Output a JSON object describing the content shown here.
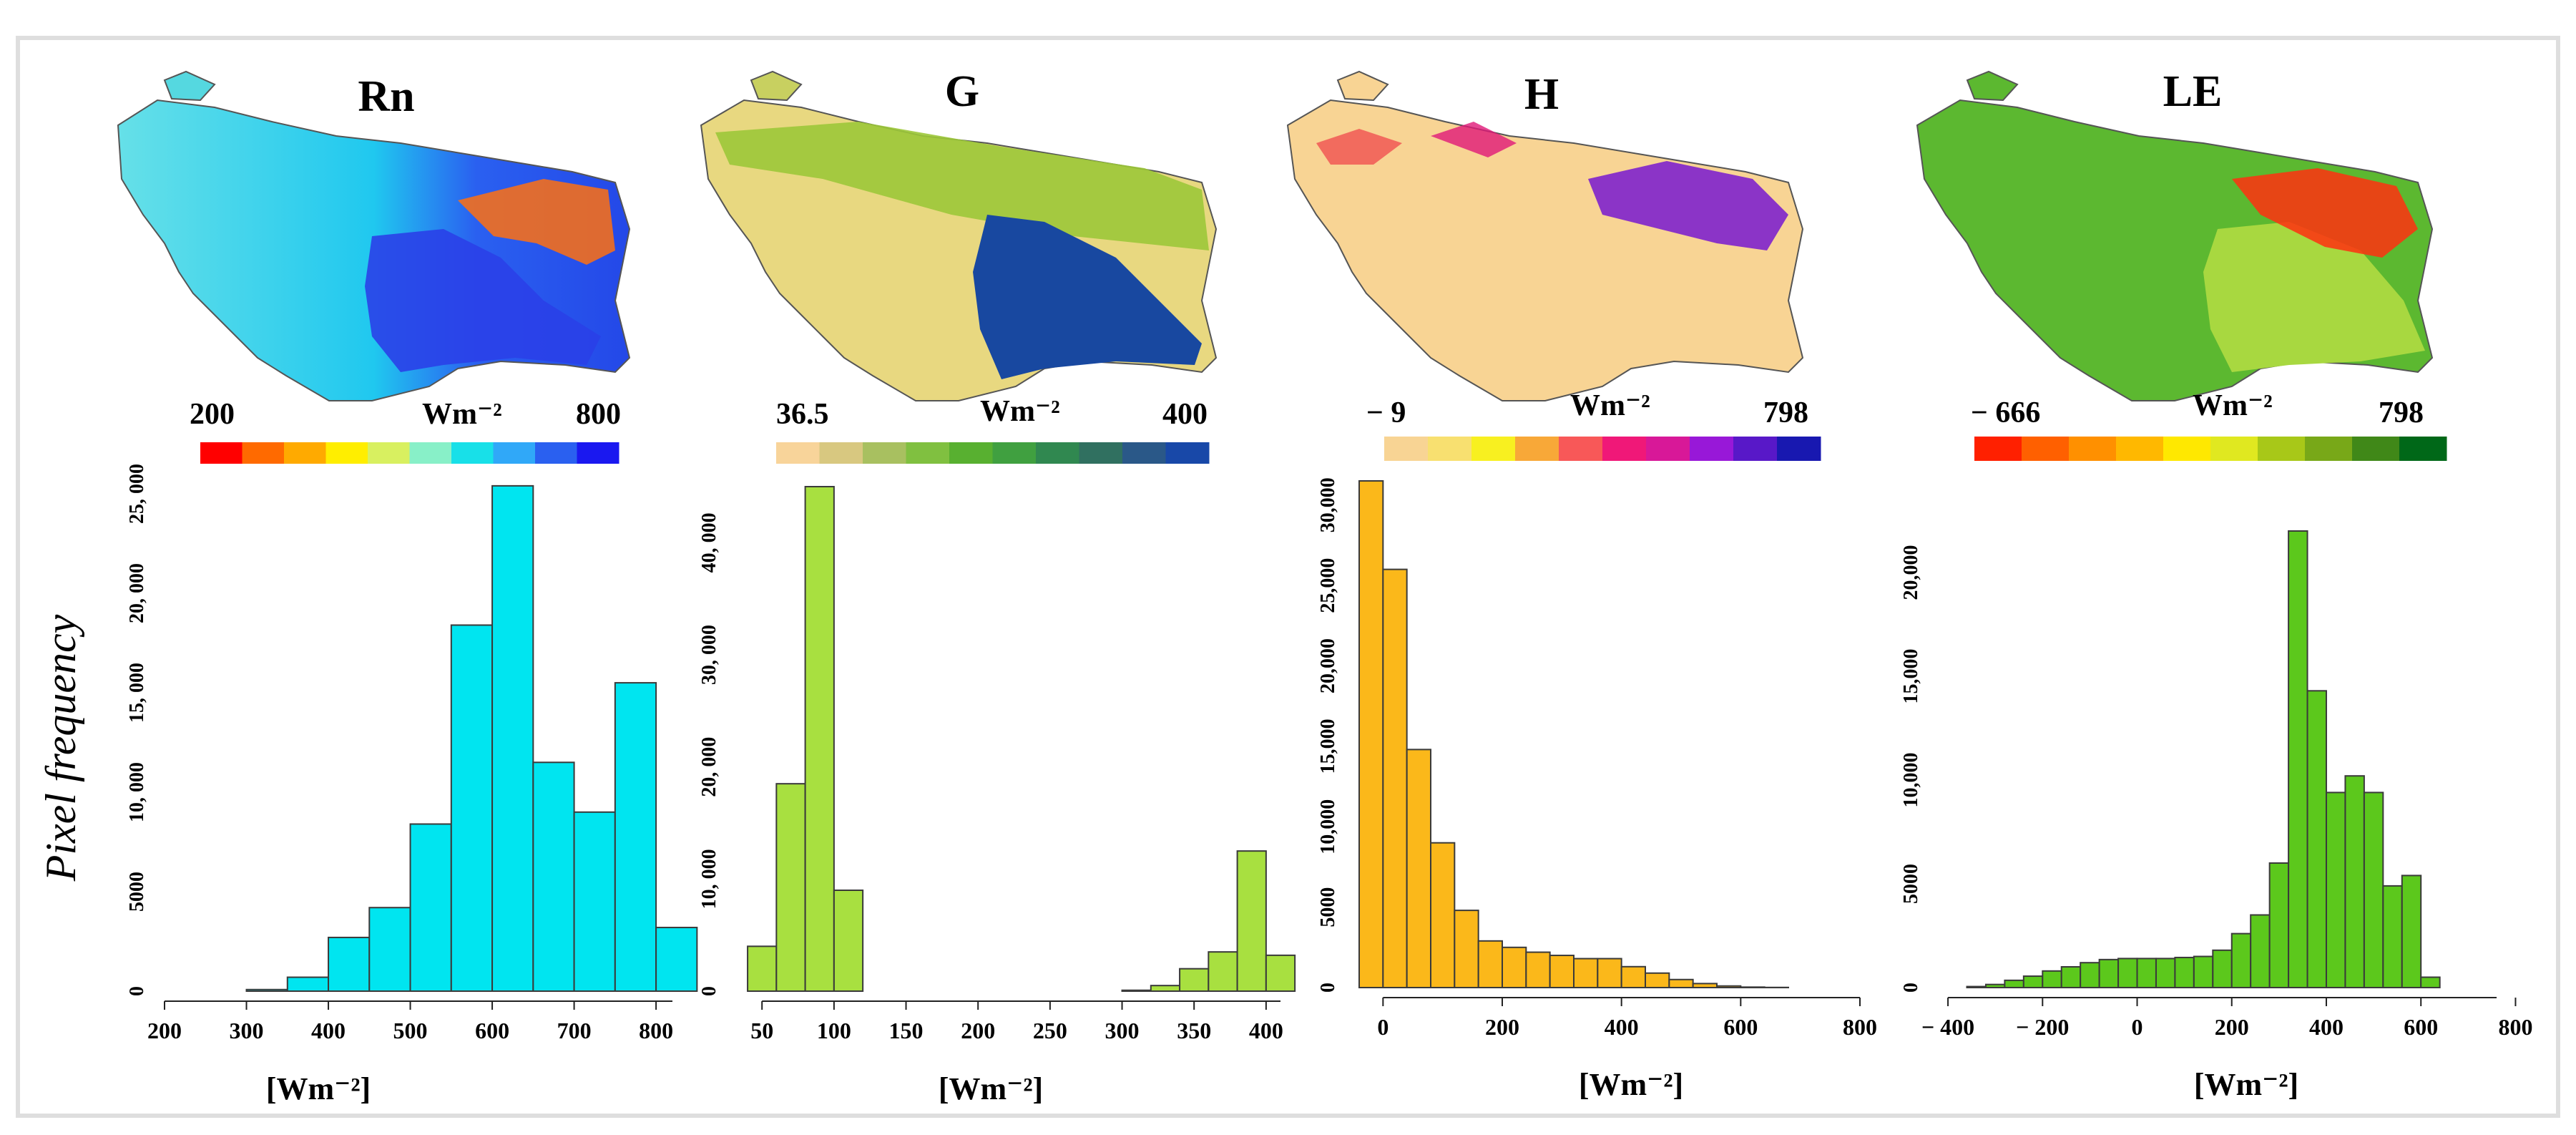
{
  "y_axis_label": "Pixel frequency",
  "chart_data": [
    {
      "type": "bar",
      "title": "Rn",
      "xlabel": "[Wm⁻²]",
      "colorbar": {
        "min_label": "200",
        "unit_label": "Wm⁻²",
        "max_label": "800",
        "colors": [
          "#ff0000",
          "#ff6a00",
          "#ffaa00",
          "#ffee00",
          "#d8f060",
          "#88f0c8",
          "#18e0e8",
          "#30a8f8",
          "#2a60f0",
          "#1a18f0"
        ]
      },
      "bar_color": "#00e5f0",
      "bin_width": 50,
      "bin_starts": [
        200,
        250,
        300,
        350,
        400,
        450,
        500,
        550,
        600,
        650,
        700,
        750,
        800
      ],
      "values": [
        0,
        0,
        80,
        700,
        2700,
        4200,
        8400,
        18400,
        25400,
        11500,
        9000,
        15500,
        3200
      ],
      "xlim": [
        200,
        820
      ],
      "ylim": [
        0,
        25000
      ],
      "xticks": [
        200,
        300,
        400,
        500,
        600,
        700,
        800
      ],
      "xtick_labels": [
        "200",
        "300",
        "400",
        "500",
        "600",
        "700",
        "800"
      ],
      "yticks": [
        0,
        5000,
        10000,
        15000,
        20000,
        25000
      ],
      "ytick_labels": [
        "0",
        "5000",
        "10, 000",
        "15, 000",
        "20, 000",
        "25, 000"
      ]
    },
    {
      "type": "bar",
      "title": "G",
      "xlabel": "[Wm⁻²]",
      "colorbar": {
        "min_label": "36.5",
        "unit_label": "Wm⁻²",
        "max_label": "400",
        "colors": [
          "#f8d49a",
          "#d8c880",
          "#a8c060",
          "#80c040",
          "#58b030",
          "#40a040",
          "#308850",
          "#307060",
          "#2a5888",
          "#1848a8"
        ]
      },
      "bar_color": "#a8e040",
      "bin_width": 20,
      "bin_starts": [
        40,
        60,
        80,
        100,
        300,
        320,
        340,
        360,
        380,
        400
      ],
      "values": [
        4000,
        18500,
        45000,
        9000,
        80,
        500,
        2000,
        3500,
        12500,
        3200
      ],
      "xlim": [
        35,
        410
      ],
      "ylim": [
        0,
        45000
      ],
      "xticks": [
        50,
        100,
        150,
        200,
        250,
        300,
        350,
        400
      ],
      "xtick_labels": [
        "50",
        "100",
        "150",
        "200",
        "250",
        "300",
        "350",
        "400"
      ],
      "yticks": [
        0,
        10000,
        20000,
        30000,
        40000
      ],
      "ytick_labels": [
        "0",
        "10, 000",
        "20, 000",
        "30, 000",
        "40, 000"
      ]
    },
    {
      "type": "bar",
      "title": "H",
      "xlabel": "[Wm⁻²]",
      "colorbar": {
        "min_label": "− 9",
        "unit_label": "Wm⁻²",
        "max_label": "798",
        "colors": [
          "#f8d494",
          "#f8e070",
          "#f8f020",
          "#f8a838",
          "#f85858",
          "#f01878",
          "#d81898",
          "#9818d8",
          "#5818c8",
          "#1818b0"
        ]
      },
      "bar_color": "#fbb81a",
      "bin_width": 40,
      "bin_starts": [
        -40,
        0,
        40,
        80,
        120,
        160,
        200,
        240,
        280,
        320,
        360,
        400,
        440,
        480,
        520,
        560,
        600,
        640
      ],
      "values": [
        31500,
        26000,
        14800,
        9000,
        4800,
        2900,
        2500,
        2200,
        2000,
        1800,
        1800,
        1300,
        900,
        500,
        250,
        100,
        30,
        10
      ],
      "xlim": [
        -40,
        800
      ],
      "ylim": [
        0,
        31500
      ],
      "xticks": [
        0,
        200,
        400,
        600,
        800
      ],
      "xtick_labels": [
        "0",
        "200",
        "400",
        "600",
        "800"
      ],
      "yticks": [
        0,
        5000,
        10000,
        15000,
        20000,
        25000,
        30000
      ],
      "ytick_labels": [
        "0",
        "5000",
        "10,000",
        "15,000",
        "20,000",
        "25,000",
        "30,000"
      ]
    },
    {
      "type": "bar",
      "title": "LE",
      "xlabel": "[Wm⁻²]",
      "colorbar": {
        "min_label": "− 666",
        "unit_label": "Wm⁻²",
        "max_label": "798",
        "colors": [
          "#ff2000",
          "#ff6000",
          "#ff9000",
          "#ffb800",
          "#ffe800",
          "#e0e820",
          "#a8c818",
          "#78a818",
          "#408818",
          "#006818"
        ]
      },
      "bar_color": "#5cc81c",
      "bin_width": 40,
      "bin_starts": [
        -440,
        -400,
        -360,
        -320,
        -280,
        -240,
        -200,
        -160,
        -120,
        -80,
        -40,
        0,
        40,
        80,
        120,
        160,
        200,
        240,
        280,
        320,
        360,
        400,
        440,
        480,
        520,
        560,
        600,
        640,
        680,
        720
      ],
      "values": [
        0,
        0,
        50,
        150,
        350,
        550,
        800,
        1000,
        1200,
        1350,
        1400,
        1400,
        1400,
        1450,
        1500,
        1800,
        2600,
        3500,
        6000,
        22000,
        14300,
        9400,
        10200,
        9400,
        4900,
        5400,
        500,
        0,
        0,
        0
      ],
      "xlim": [
        -450,
        760
      ],
      "ylim": [
        0,
        22000
      ],
      "xticks": [
        -400,
        -200,
        0,
        200,
        400,
        600,
        800
      ],
      "xtick_labels": [
        "− 400",
        "− 200",
        "0",
        "200",
        "400",
        "600",
        "800"
      ],
      "yticks": [
        0,
        5000,
        10000,
        15000,
        20000
      ],
      "ytick_labels": [
        "0",
        "5000",
        "10,000",
        "15,000",
        "20,000"
      ]
    }
  ]
}
